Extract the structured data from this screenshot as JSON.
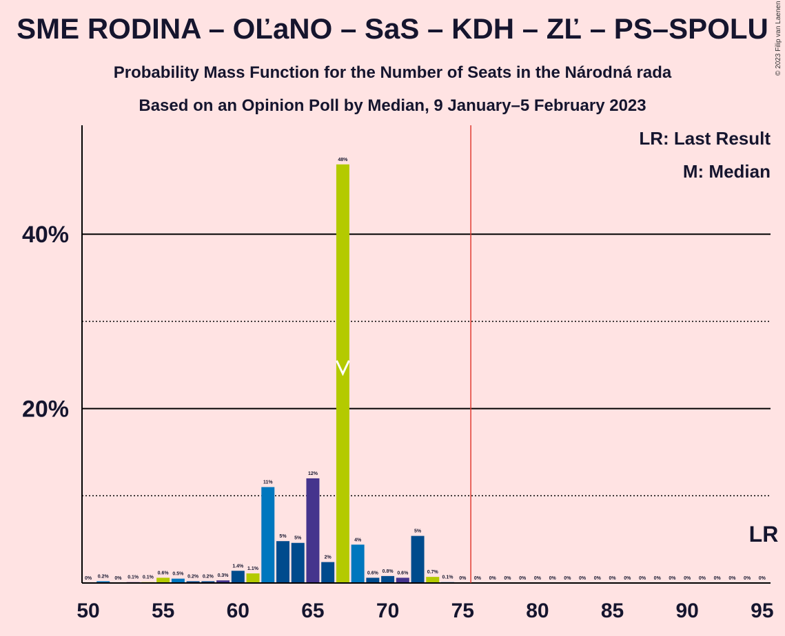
{
  "title": "SME RODINA – OĽaNO – SaS – KDH – ZĽ – PS–SPOLU",
  "subtitle1": "Probability Mass Function for the Number of Seats in the Národná rada",
  "subtitle2": "Based on an Opinion Poll by Median, 9 January–5 February 2023",
  "copyright": "© 2023 Filip van Laenen",
  "legend": {
    "lr": "LR: Last Result",
    "m": "M: Median"
  },
  "lr_marker_label": "LR",
  "median_marker_label": "M",
  "colors": {
    "background": "#FFE3E3",
    "lr_line": "#E03C31",
    "text": "#15152E"
  },
  "chart_data": {
    "type": "bar",
    "xlabel": "",
    "ylabel": "",
    "x": [
      50,
      51,
      52,
      53,
      54,
      55,
      56,
      57,
      58,
      59,
      60,
      61,
      62,
      63,
      64,
      65,
      66,
      67,
      68,
      69,
      70,
      71,
      72,
      73,
      74,
      75,
      76,
      77,
      78,
      79,
      80,
      81,
      82,
      83,
      84,
      85,
      86,
      87,
      88,
      89,
      90,
      91,
      92,
      93,
      94,
      95
    ],
    "values": [
      0,
      0.2,
      0,
      0.1,
      0.1,
      0.6,
      0.5,
      0.2,
      0.2,
      0.3,
      1.4,
      1.1,
      11,
      4.8,
      4.6,
      12,
      2.4,
      48,
      4.4,
      0.6,
      0.8,
      0.6,
      5.4,
      0.7,
      0.1,
      0,
      0,
      0,
      0,
      0,
      0,
      0,
      0,
      0,
      0,
      0,
      0,
      0,
      0,
      0,
      0,
      0,
      0,
      0,
      0,
      0
    ],
    "labels": [
      "0%",
      "0.2%",
      "0%",
      "0.1%",
      "0.1%",
      "0.6%",
      "0.5%",
      "0.2%",
      "0.2%",
      "0.3%",
      "1.4%",
      "1.1%",
      "11%",
      "5%",
      "5%",
      "12%",
      "2%",
      "48%",
      "4%",
      "0.6%",
      "0.8%",
      "0.6%",
      "5%",
      "0.7%",
      "0.1%",
      "0%",
      "0%",
      "0%",
      "0%",
      "0%",
      "0%",
      "0%",
      "0%",
      "0%",
      "0%",
      "0%",
      "0%",
      "0%",
      "0%",
      "0%",
      "0%",
      "0%",
      "0%",
      "0%",
      "0%",
      "0%"
    ],
    "bar_colors": [
      "#B4CA00",
      "#0077BE",
      "#004B8D",
      "#45348D",
      "#B4CA00",
      "#B4CA00",
      "#0077BE",
      "#004B8D",
      "#004B8D",
      "#45348D",
      "#004B8D",
      "#B4CA00",
      "#0077BE",
      "#004B8D",
      "#004B8D",
      "#45348D",
      "#004B8D",
      "#B4CA00",
      "#0077BE",
      "#004B8D",
      "#004B8D",
      "#45348D",
      "#004B8D",
      "#B4CA00",
      "#0077BE",
      "#004B8D",
      "#004B8D",
      "#004B8D",
      "#004B8D",
      "#004B8D",
      "#004B8D",
      "#004B8D",
      "#004B8D",
      "#004B8D",
      "#004B8D",
      "#004B8D",
      "#004B8D",
      "#004B8D",
      "#004B8D",
      "#004B8D",
      "#004B8D",
      "#004B8D",
      "#004B8D",
      "#004B8D",
      "#004B8D",
      "#004B8D"
    ],
    "xticks": [
      "50",
      "55",
      "60",
      "65",
      "70",
      "75",
      "80",
      "85",
      "90",
      "95"
    ],
    "yticks": [
      "20%",
      "40%"
    ],
    "ylim": [
      0,
      52
    ],
    "xlim": [
      50,
      95
    ],
    "median": 67,
    "last_result": 95,
    "majority_line": 76,
    "grid": true
  }
}
